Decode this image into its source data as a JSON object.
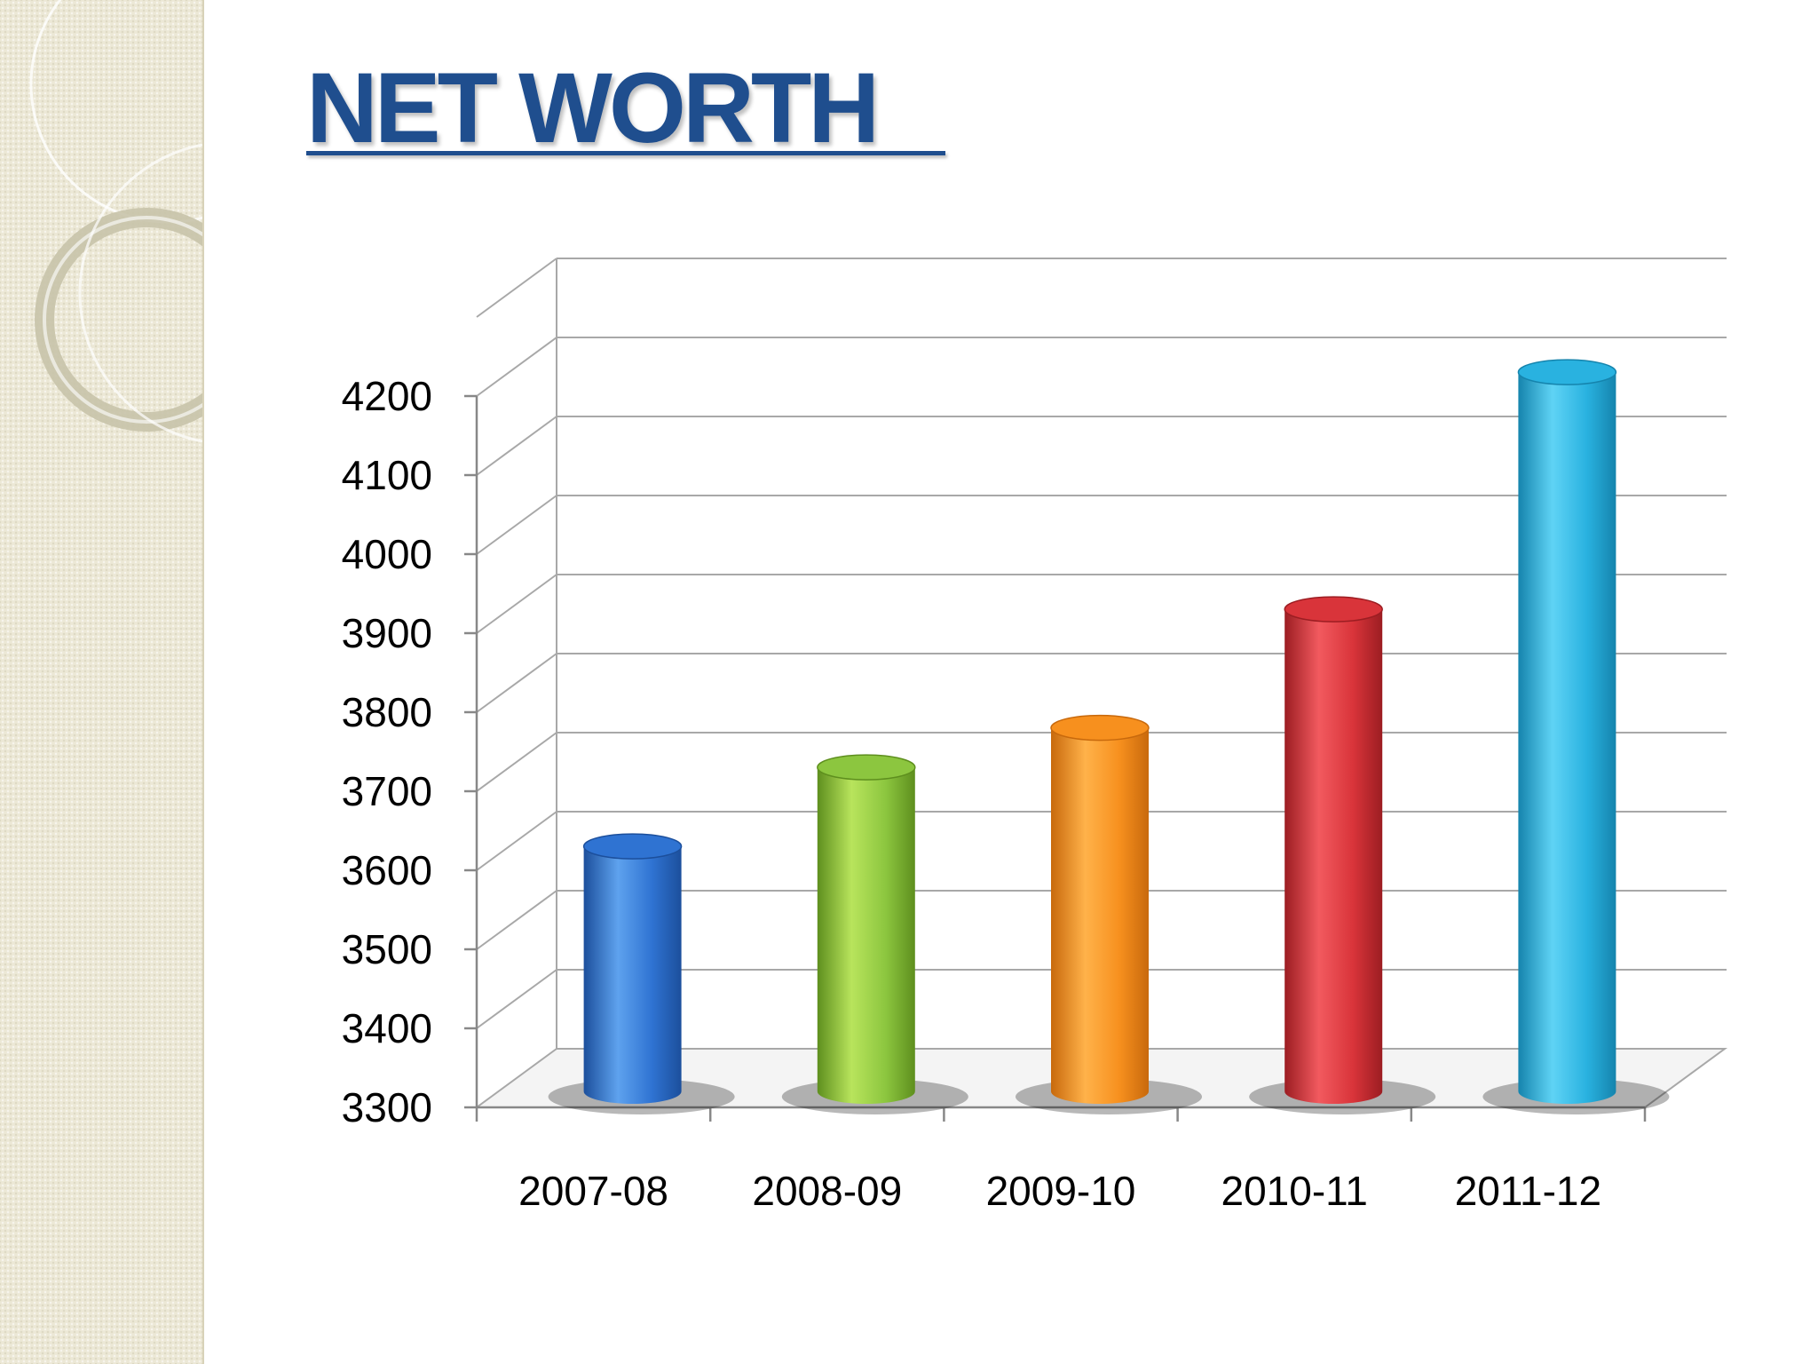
{
  "slide": {
    "title": "NET WORTH"
  },
  "chart_data": {
    "type": "bar",
    "title": "",
    "xlabel": "",
    "ylabel": "",
    "categories": [
      "2007-08",
      "2008-09",
      "2009-10",
      "2010-11",
      "2011-12"
    ],
    "values": [
      3610,
      3710,
      3760,
      3910,
      4210
    ],
    "ylim": [
      3300,
      4200
    ],
    "yticks": [
      3300,
      3400,
      3500,
      3600,
      3700,
      3800,
      3900,
      4000,
      4100,
      4200
    ],
    "grid": true,
    "legend": "none",
    "bar_colors": [
      "#2f73d2",
      "#8cc63f",
      "#f7901e",
      "#d9343a",
      "#29b2e0"
    ],
    "bar_colors_light": [
      "#5ea2ee",
      "#b8e45c",
      "#ffb24a",
      "#f25a5f",
      "#5fd3f5"
    ],
    "bar_colors_dark": [
      "#1c4f9c",
      "#5e8f1e",
      "#c8690c",
      "#9c1d22",
      "#1584ad"
    ],
    "style": "3d-cylinder"
  }
}
